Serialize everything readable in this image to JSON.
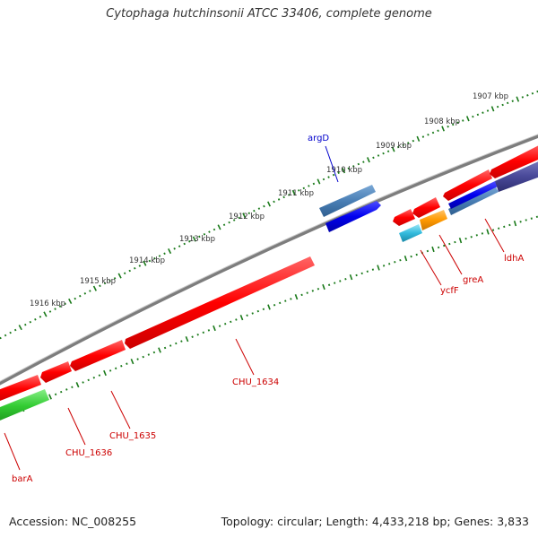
{
  "title": "Cytophaga hutchinsonii ATCC 33406, complete genome",
  "footer": {
    "accession": "Accession: NC_008255",
    "topology": "Topology: circular; Length: 4,433,218 bp; Genes: 3,833"
  },
  "colors": {
    "backbone": "#8c8c8c",
    "ticks": "#1a7a1a",
    "kbp_label": "#333333",
    "label_red": "#cc0000",
    "label_blue": "#0000cc",
    "red": "#ff0000",
    "blue": "#0000ee",
    "steelblue": "#4a7fb5",
    "purple": "#4a4a9a",
    "green": "#33cc33",
    "cyan": "#33bbdd",
    "orange": "#ff9900"
  },
  "kbp_ticks": [
    {
      "kbp": 1907,
      "label": "1907 kbp"
    },
    {
      "kbp": 1908,
      "label": "1908 kbp"
    },
    {
      "kbp": 1909,
      "label": "1909 kbp"
    },
    {
      "kbp": 1910,
      "label": "1910 kbp"
    },
    {
      "kbp": 1911,
      "label": "1911 kbp"
    },
    {
      "kbp": 1912,
      "label": "1912 kbp"
    },
    {
      "kbp": 1913,
      "label": "1913 kbp"
    },
    {
      "kbp": 1914,
      "label": "1914 kbp"
    },
    {
      "kbp": 1915,
      "label": "1915 kbp"
    },
    {
      "kbp": 1916,
      "label": "1916 kbp"
    }
  ],
  "genes": [
    {
      "name": "argD",
      "strand": "+",
      "color": "steelblue"
    },
    {
      "name": "ldhA",
      "strand": "-",
      "color": "red"
    },
    {
      "name": "greA",
      "strand": "-",
      "color": "red"
    },
    {
      "name": "ycfF",
      "strand": "-",
      "color": "red"
    },
    {
      "name": "CHU_1634",
      "strand": "-",
      "color": "red"
    },
    {
      "name": "CHU_1635",
      "strand": "-",
      "color": "red"
    },
    {
      "name": "CHU_1636",
      "strand": "-",
      "color": "red"
    },
    {
      "name": "barA",
      "strand": "-",
      "color": "red"
    }
  ]
}
